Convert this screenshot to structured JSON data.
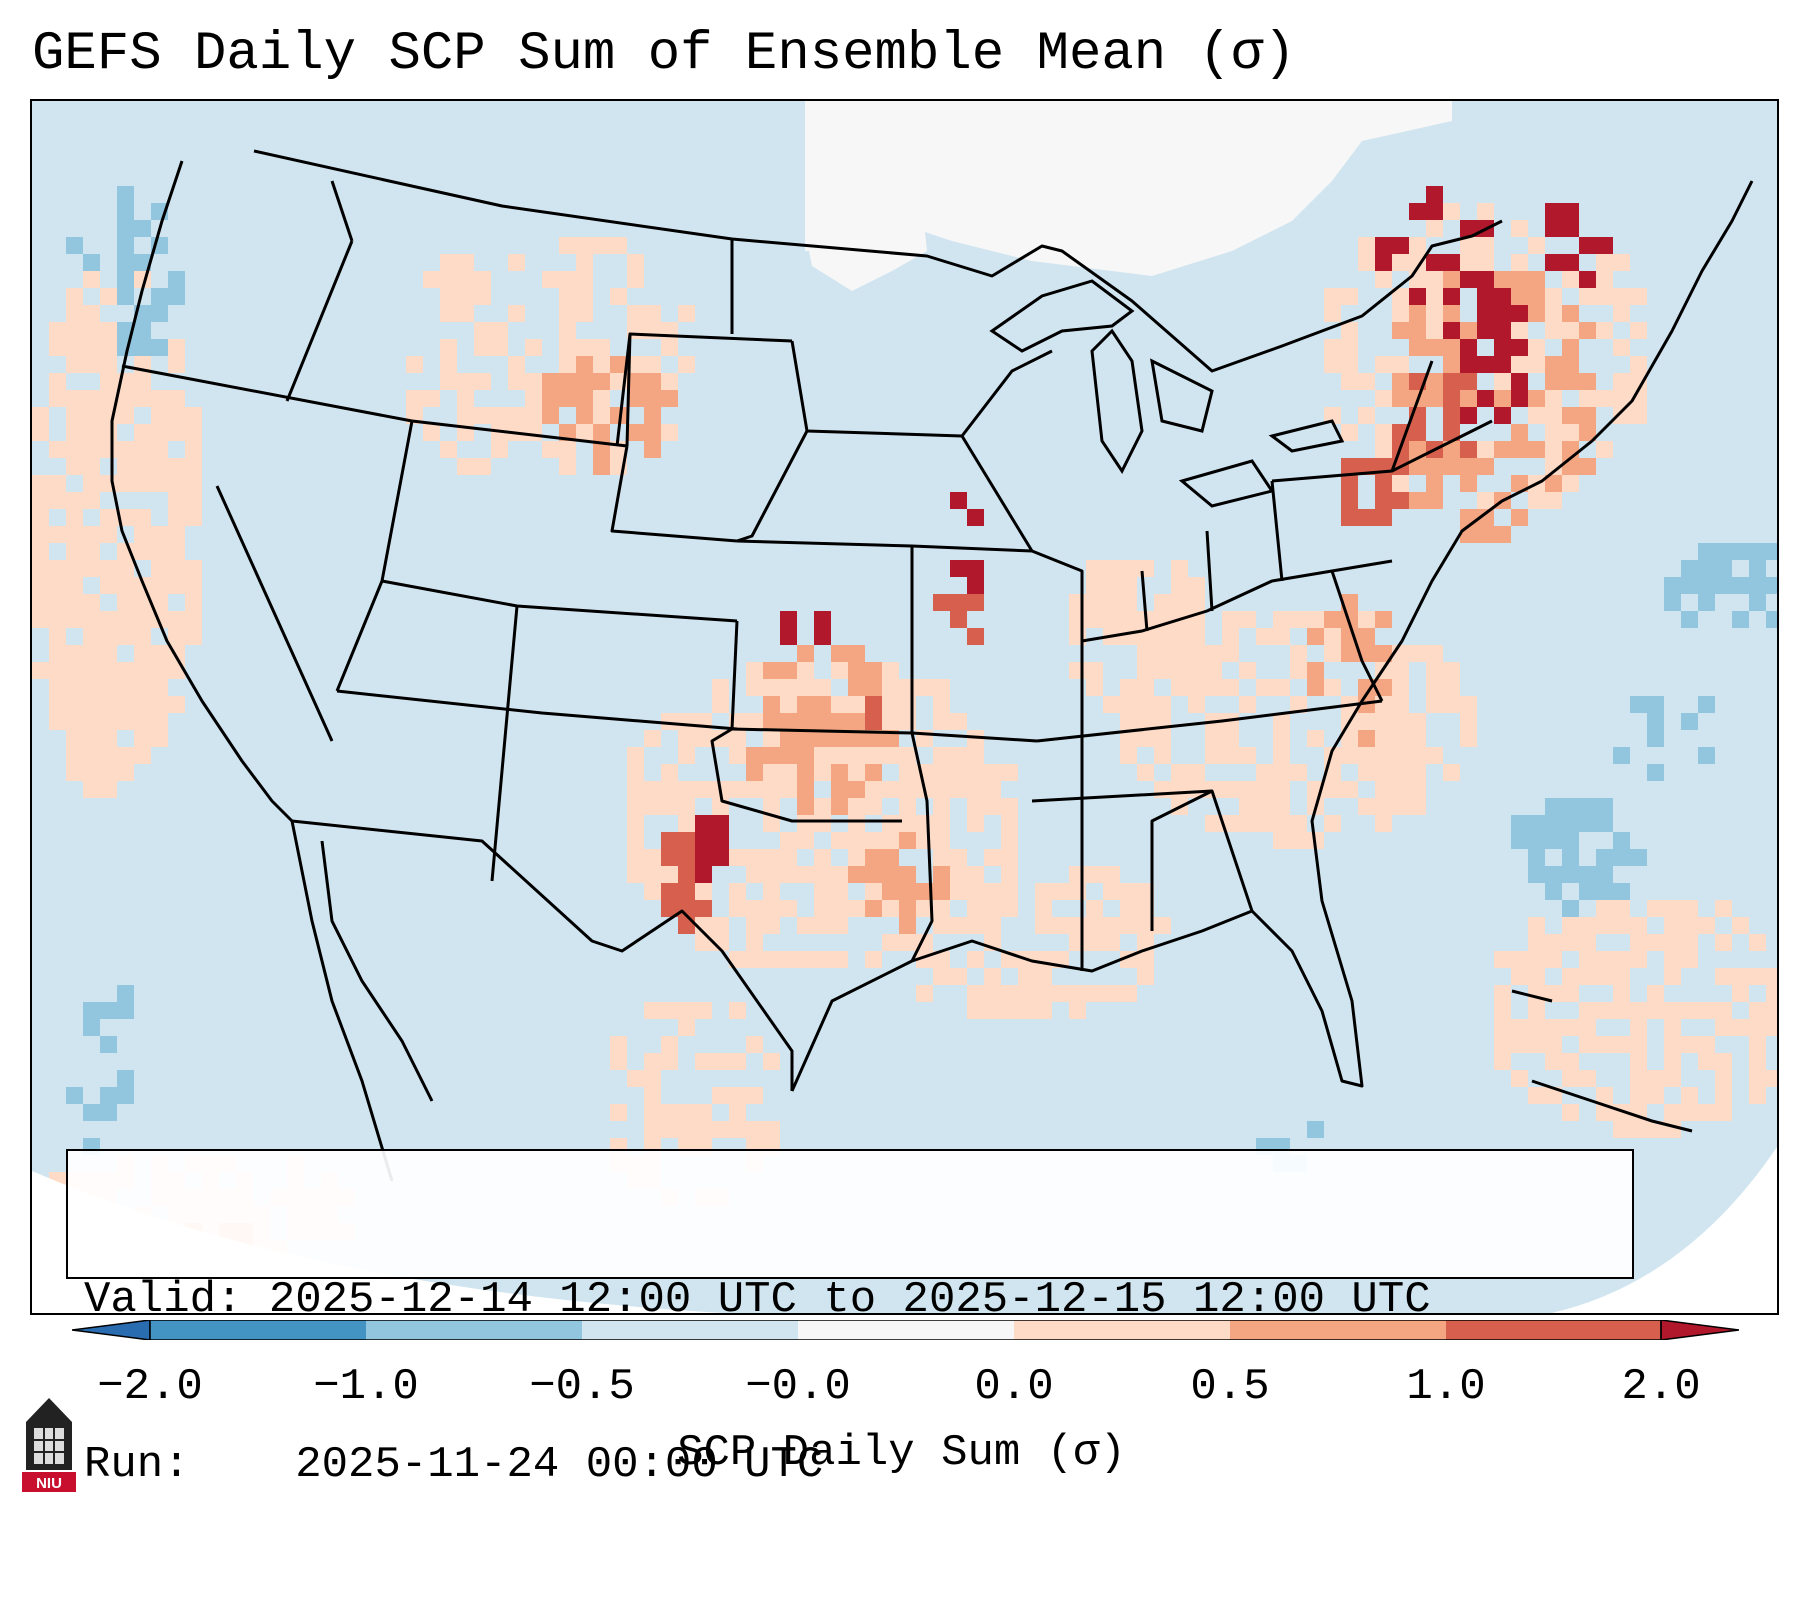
{
  "title": "GEFS Daily SCP Sum of Ensemble Mean (σ)",
  "info": {
    "valid_label": "Valid:",
    "valid_value": "2025-12-14 12:00 UTC to 2025-12-15 12:00 UTC",
    "run_label": "Run:",
    "run_value": "2025-11-24 00:00 UTC"
  },
  "colorbar": {
    "label": "SCP Daily Sum (σ)",
    "ticks": [
      "−2.0",
      "−1.0",
      "−0.5",
      "−0.0",
      "0.0",
      "0.5",
      "1.0",
      "2.0"
    ],
    "colors": {
      "below": "#2a6cb0",
      "n2_n1": "#4393c3",
      "n1_n05": "#92c5de",
      "n05_0": "#d1e5f0",
      "zero": "#f7f7f7",
      "p0_05": "#fddbc7",
      "p05_1": "#f4a582",
      "p1_2": "#d6604d",
      "above": "#b2182b"
    }
  },
  "logo": {
    "text": "NIU",
    "name": "niu-logo"
  },
  "map": {
    "background_color": "#d1e5f0",
    "outline_color": "#000000"
  }
}
